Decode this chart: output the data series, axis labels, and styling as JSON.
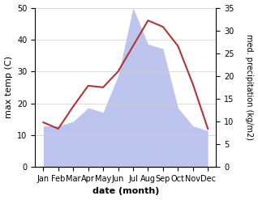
{
  "months": [
    "Jan",
    "Feb",
    "Mar",
    "Apr",
    "May",
    "Jun",
    "Jul",
    "Aug",
    "Sep",
    "Oct",
    "Nov",
    "Dec"
  ],
  "max_temp": [
    14.0,
    12.0,
    19.0,
    25.5,
    25.0,
    30.0,
    38.0,
    46.0,
    44.0,
    38.0,
    26.0,
    12.0
  ],
  "precipitation": [
    9.0,
    9.0,
    10.0,
    13.0,
    12.0,
    20.0,
    35.0,
    27.0,
    26.0,
    13.0,
    9.0,
    8.0
  ],
  "temp_color": "#b03535",
  "precip_fill_color": "#bdc5ee",
  "ylabel_left": "max temp (C)",
  "ylabel_right": "med. precipitation (kg/m2)",
  "xlabel": "date (month)",
  "ylim_left": [
    0,
    50
  ],
  "ylim_right": [
    0,
    35
  ],
  "yticks_left": [
    0,
    10,
    20,
    30,
    40,
    50
  ],
  "yticks_right": [
    0,
    5,
    10,
    15,
    20,
    25,
    30,
    35
  ],
  "bg_color": "#ffffff",
  "label_fontsize": 8,
  "tick_fontsize": 7
}
